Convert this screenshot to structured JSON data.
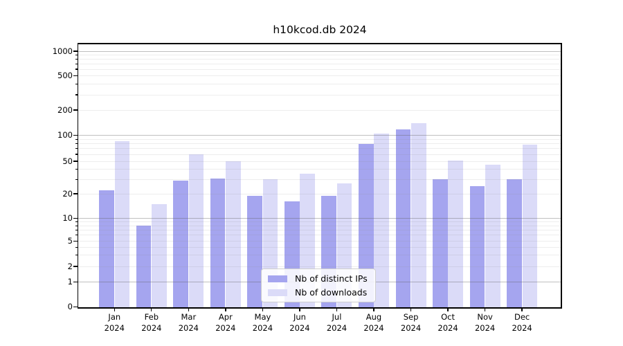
{
  "chart_data": {
    "type": "bar",
    "title": "h10kcod.db 2024",
    "categories": [
      "Jan 2024",
      "Feb 2024",
      "Mar 2024",
      "Apr 2024",
      "May 2024",
      "Jun 2024",
      "Jul 2024",
      "Aug 2024",
      "Sep 2024",
      "Oct 2024",
      "Nov 2024",
      "Dec 2024"
    ],
    "series": [
      {
        "name": "Nb of distinct IPs",
        "color": "#a5a5ef",
        "values": [
          22,
          8,
          29,
          31,
          19,
          16,
          19,
          80,
          118,
          30,
          25,
          30
        ]
      },
      {
        "name": "Nb of downloads",
        "color": "#dbdbf8",
        "values": [
          85,
          15,
          60,
          50,
          30,
          35,
          27,
          105,
          140,
          51,
          45,
          78
        ]
      }
    ],
    "y_axis": {
      "scale": "log-like",
      "ticks": [
        0,
        1,
        2,
        5,
        10,
        20,
        50,
        100,
        200,
        500,
        1000
      ],
      "range": [
        0,
        1000
      ]
    },
    "grid": {
      "major_lines": [
        1,
        10,
        100,
        1000
      ],
      "minor_lines": "2-9 per decade"
    },
    "legend": {
      "position": "bottom-center"
    }
  }
}
